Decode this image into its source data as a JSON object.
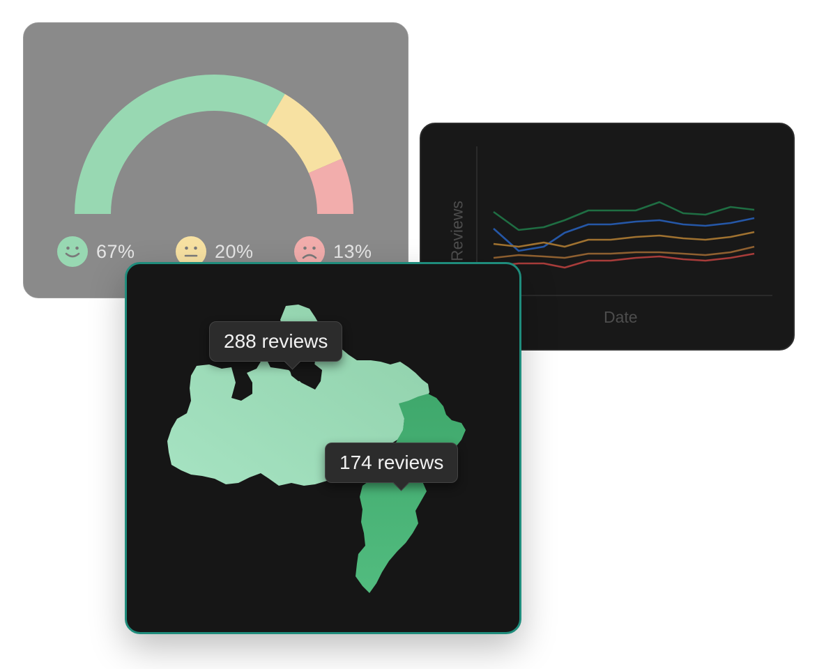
{
  "sentiment": {
    "colors": {
      "positive": "#98d8b2",
      "neutral": "#f7e1a2",
      "negative": "#f2adac"
    },
    "items": [
      {
        "name": "positive",
        "icon": "smiling-face-icon",
        "value": 67,
        "label": "67%"
      },
      {
        "name": "neutral",
        "icon": "neutral-face-icon",
        "value": 20,
        "label": "20%"
      },
      {
        "name": "negative",
        "icon": "frowning-face-icon",
        "value": 13,
        "label": "13%"
      }
    ]
  },
  "trend": {
    "ylabel": "Reviews",
    "xlabel": "Date",
    "series_colors": [
      "#1f6e43",
      "#2557a7",
      "#a07230",
      "#8f6030",
      "#a83c3a"
    ]
  },
  "map": {
    "region_colors": {
      "light": "#98d8b2",
      "dark": "#49b879"
    },
    "tooltips": [
      {
        "label": "288 reviews",
        "value": 288
      },
      {
        "label": "174 reviews",
        "value": 174
      }
    ]
  }
}
